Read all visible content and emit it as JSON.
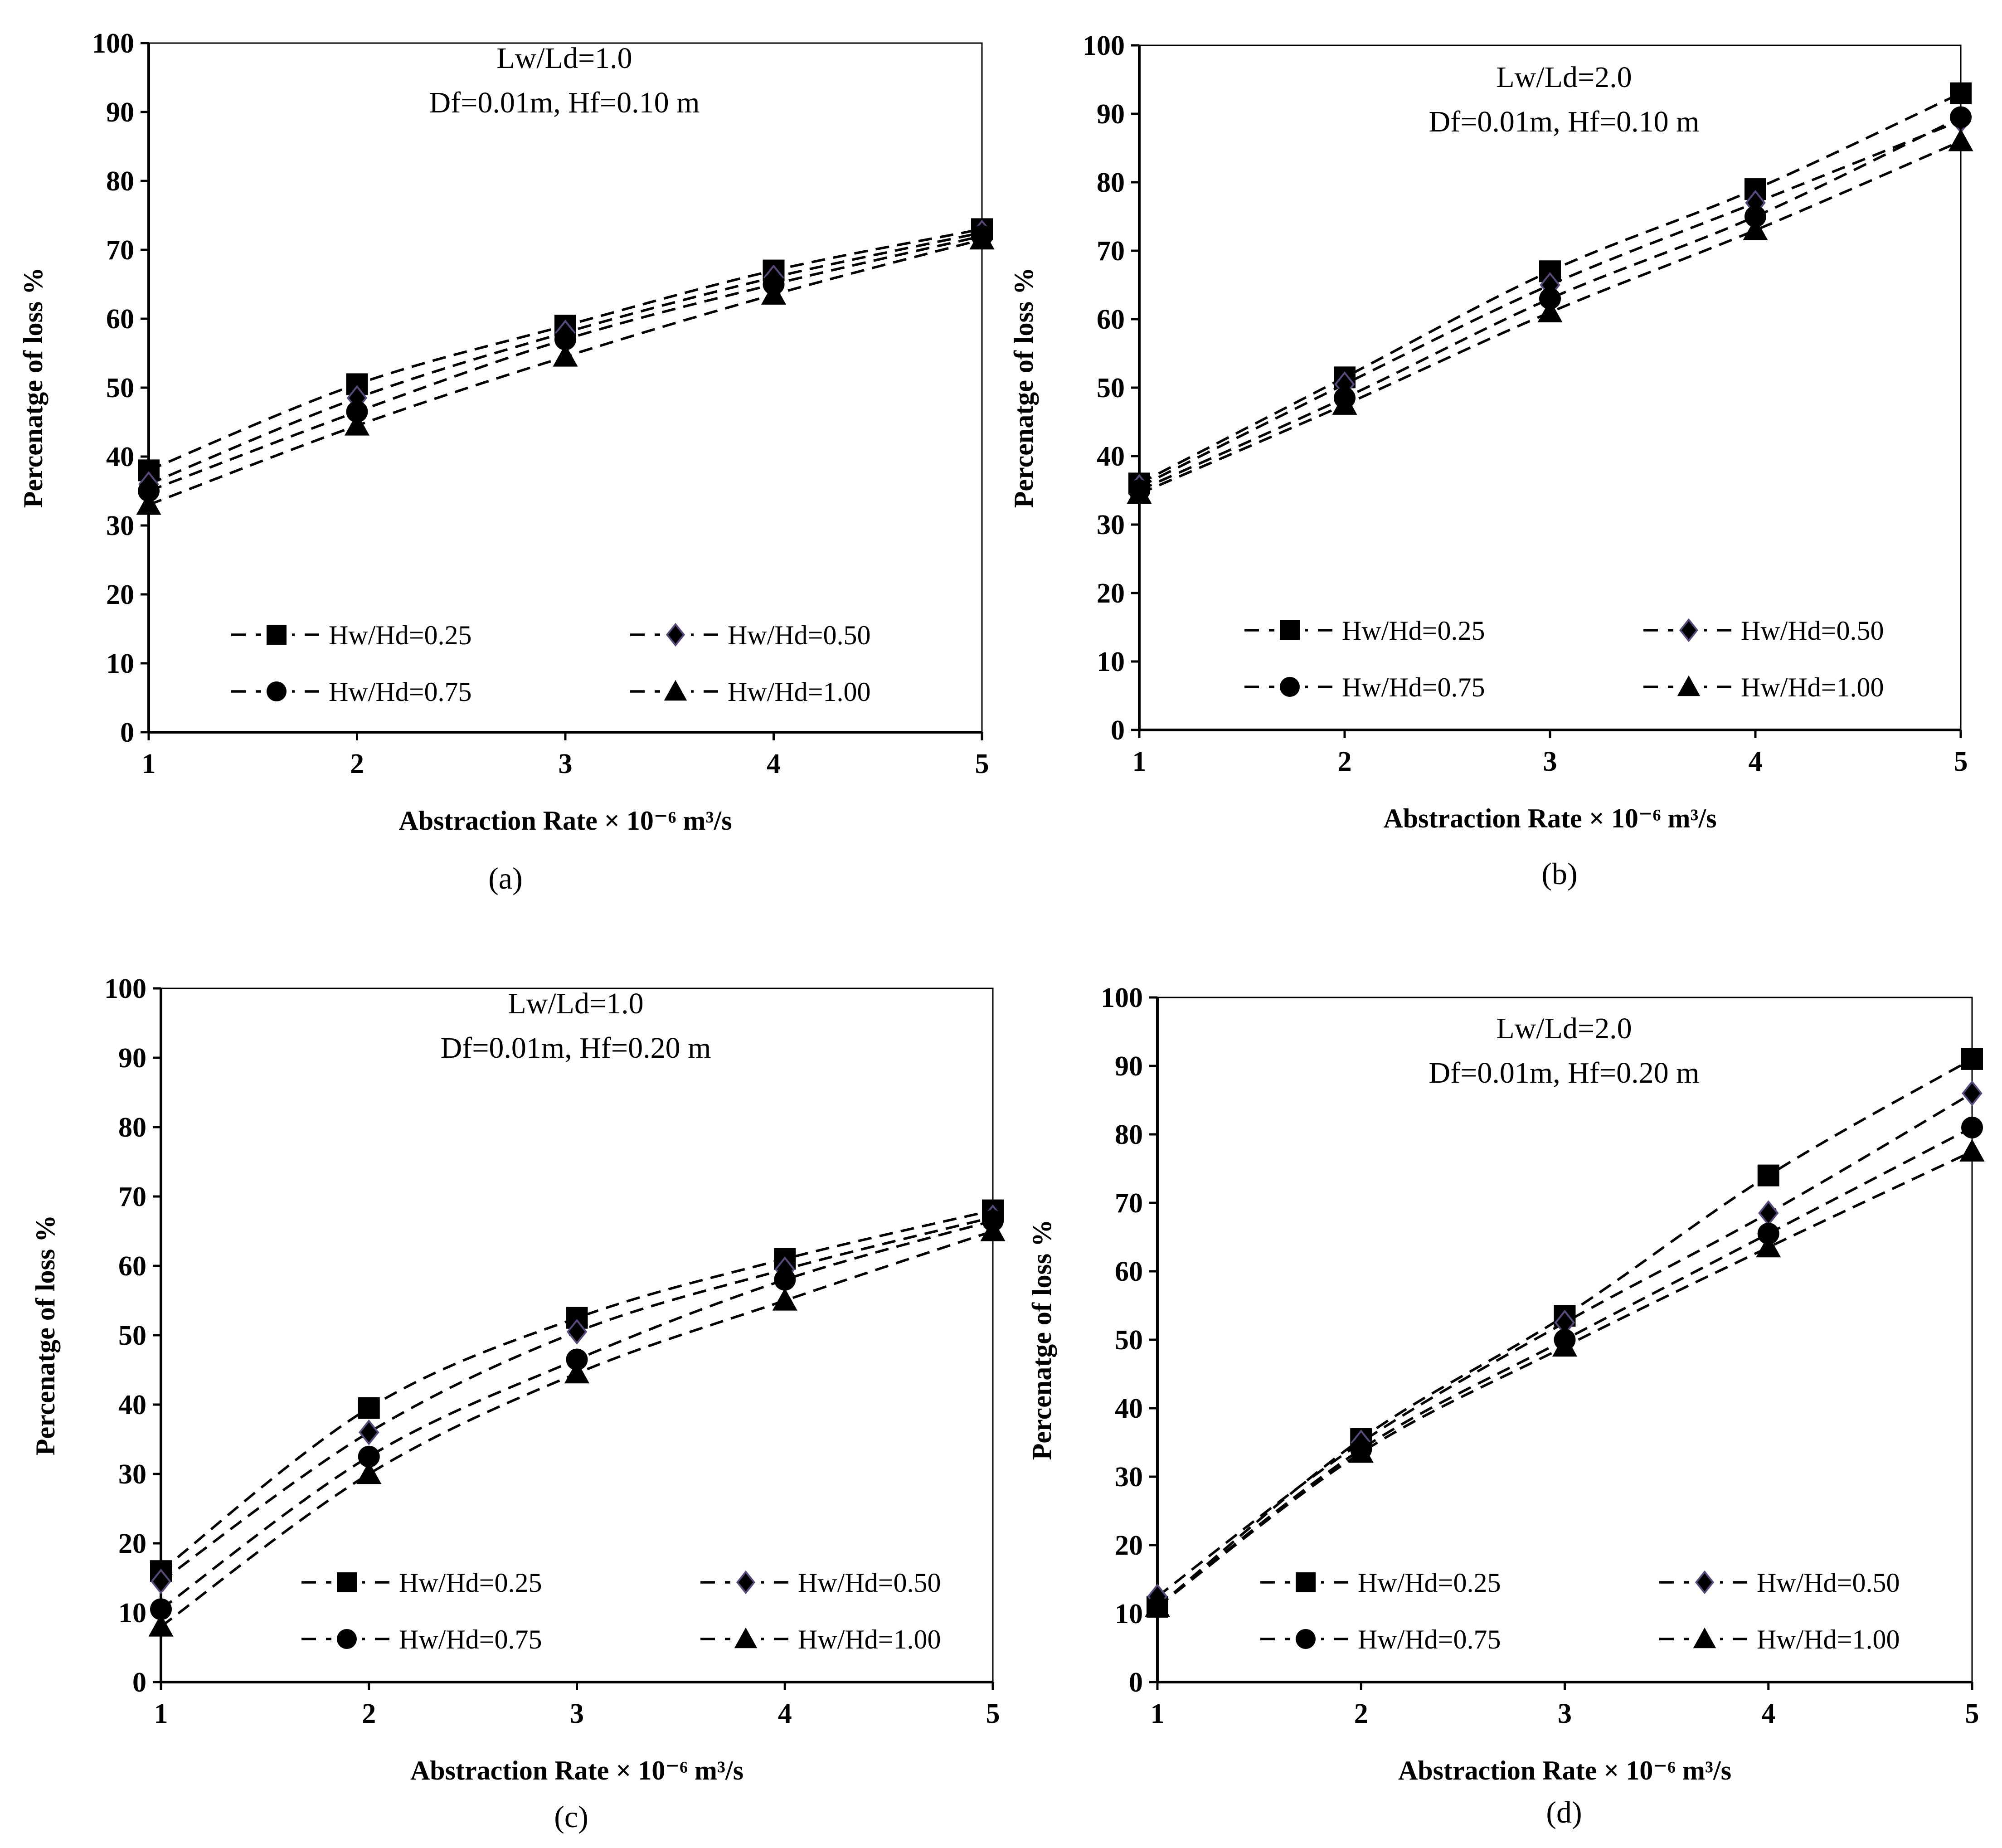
{
  "chart_data": [
    {
      "type": "line",
      "panel_label": "(a)",
      "annotation": [
        "Lw/Ld=1.0",
        "Df=0.01m, Hf=0.10 m"
      ],
      "xlabel": "Abstraction Rate × 10⁻⁶  m³/s",
      "ylabel": "Percenatge of loss %",
      "x": [
        1,
        2,
        3,
        4,
        5
      ],
      "xlim": [
        1,
        5
      ],
      "ylim": [
        0,
        100
      ],
      "yticks": [
        0,
        10,
        20,
        30,
        40,
        50,
        60,
        70,
        80,
        90,
        100
      ],
      "series": [
        {
          "name": "Hw/Hd=0.25",
          "marker": "square",
          "values": [
            38,
            50.5,
            59,
            67,
            73
          ]
        },
        {
          "name": "Hw/Hd=0.50",
          "marker": "diamond",
          "values": [
            36,
            48.5,
            58,
            66,
            72.5
          ]
        },
        {
          "name": "Hw/Hd=0.75",
          "marker": "circle",
          "values": [
            35,
            46.5,
            57,
            65,
            72
          ]
        },
        {
          "name": "Hw/Hd=1.00",
          "marker": "triangle",
          "values": [
            33,
            44.5,
            54.5,
            63.5,
            71.5
          ]
        }
      ]
    },
    {
      "type": "line",
      "panel_label": "(b)",
      "annotation": [
        "Lw/Ld=2.0",
        "Df=0.01m, Hf=0.10 m"
      ],
      "xlabel": "Abstraction Rate × 10⁻⁶  m³/s",
      "ylabel": "Percenatge of loss %",
      "x": [
        1,
        2,
        3,
        4,
        5
      ],
      "xlim": [
        1,
        5
      ],
      "ylim": [
        0,
        100
      ],
      "yticks": [
        0,
        10,
        20,
        30,
        40,
        50,
        60,
        70,
        80,
        90,
        100
      ],
      "series": [
        {
          "name": "Hw/Hd=0.25",
          "marker": "square",
          "values": [
            36,
            51.5,
            67,
            79,
            93
          ]
        },
        {
          "name": "Hw/Hd=0.50",
          "marker": "diamond",
          "values": [
            35.5,
            50.5,
            65,
            77,
            89
          ]
        },
        {
          "name": "Hw/Hd=0.75",
          "marker": "circle",
          "values": [
            35,
            48.5,
            63,
            75,
            89.5
          ]
        },
        {
          "name": "Hw/Hd=1.00",
          "marker": "triangle",
          "values": [
            34.5,
            47.5,
            61,
            73,
            86
          ]
        }
      ]
    },
    {
      "type": "line",
      "panel_label": "(c)",
      "annotation": [
        "Lw/Ld=1.0",
        "Df=0.01m, Hf=0.20 m"
      ],
      "xlabel": "Abstraction Rate × 10⁻⁶  m³/s",
      "ylabel": "Percenatge of loss %",
      "x": [
        1,
        2,
        3,
        4,
        5
      ],
      "xlim": [
        1,
        5
      ],
      "ylim": [
        0,
        100
      ],
      "yticks": [
        0,
        10,
        20,
        30,
        40,
        50,
        60,
        70,
        80,
        90,
        100
      ],
      "series": [
        {
          "name": "Hw/Hd=0.25",
          "marker": "square",
          "values": [
            16,
            39.5,
            52.5,
            61,
            68
          ]
        },
        {
          "name": "Hw/Hd=0.50",
          "marker": "diamond",
          "values": [
            14.5,
            36,
            50.5,
            59.5,
            67
          ]
        },
        {
          "name": "Hw/Hd=0.75",
          "marker": "circle",
          "values": [
            10.5,
            32.5,
            46.5,
            58,
            66.5
          ]
        },
        {
          "name": "Hw/Hd=1.00",
          "marker": "triangle",
          "values": [
            8,
            30,
            44.5,
            55,
            65
          ]
        }
      ]
    },
    {
      "type": "line",
      "panel_label": "(d)",
      "annotation": [
        "Lw/Ld=2.0",
        "Df=0.01m, Hf=0.20 m"
      ],
      "xlabel": "Abstraction Rate × 10⁻⁶  m³/s",
      "ylabel": "Percenatge of loss %",
      "x": [
        1,
        2,
        3,
        4,
        5
      ],
      "xlim": [
        1,
        5
      ],
      "ylim": [
        0,
        100
      ],
      "yticks": [
        0,
        10,
        20,
        30,
        40,
        50,
        60,
        70,
        80,
        90,
        100
      ],
      "series": [
        {
          "name": "Hw/Hd=0.25",
          "marker": "square",
          "values": [
            11,
            35.5,
            53.5,
            74,
            91
          ]
        },
        {
          "name": "Hw/Hd=0.50",
          "marker": "diamond",
          "values": [
            12.5,
            35,
            52.5,
            68.5,
            86
          ]
        },
        {
          "name": "Hw/Hd=0.75",
          "marker": "circle",
          "values": [
            11,
            34,
            50,
            65.5,
            81
          ]
        },
        {
          "name": "Hw/Hd=1.00",
          "marker": "triangle",
          "values": [
            11,
            33.5,
            49,
            63.5,
            77.5
          ]
        }
      ]
    }
  ],
  "colors": {
    "ink": "#000000",
    "diamond_edge": "#5a4a7a",
    "background": "#ffffff"
  }
}
